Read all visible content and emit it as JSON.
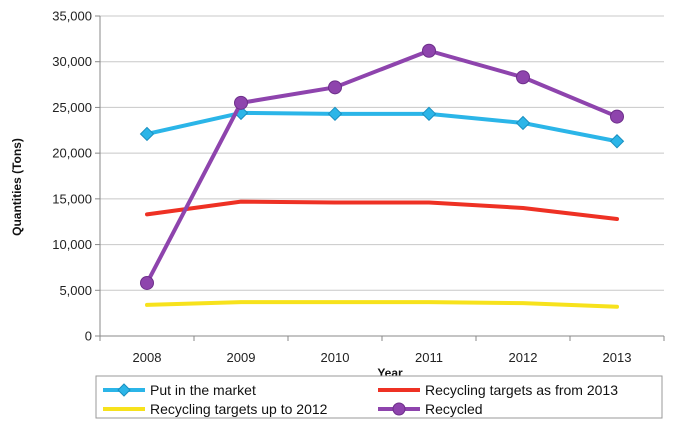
{
  "chart_data": {
    "type": "line",
    "title": "",
    "xlabel": "Year",
    "ylabel": "Quantities (Tons)",
    "categories": [
      "2008",
      "2009",
      "2010",
      "2011",
      "2012",
      "2013"
    ],
    "ylim": [
      0,
      35000
    ],
    "yticks": [
      0,
      5000,
      10000,
      15000,
      20000,
      25000,
      30000,
      35000
    ],
    "ytick_labels": [
      "0",
      "5,000",
      "10,000",
      "15,000",
      "20,000",
      "25,000",
      "30,000",
      "35,000"
    ],
    "grid": "horizontal",
    "legend_position": "bottom",
    "series": [
      {
        "name": "Put in the market",
        "values": [
          22100,
          24400,
          24300,
          24300,
          23300,
          21300
        ],
        "color": "#2bb5e8",
        "marker": "diamond"
      },
      {
        "name": "Recycling targets as from 2013",
        "values": [
          13300,
          14700,
          14600,
          14600,
          14000,
          12800
        ],
        "color": "#ee3124",
        "marker": "none"
      },
      {
        "name": "Recycling targets up to 2012",
        "values": [
          3400,
          3700,
          3700,
          3700,
          3600,
          3200
        ],
        "color": "#f7e21c",
        "marker": "none"
      },
      {
        "name": "Recycled",
        "values": [
          5800,
          25500,
          27200,
          31200,
          28300,
          24000
        ],
        "color": "#8e44ad",
        "marker": "circle"
      }
    ]
  }
}
